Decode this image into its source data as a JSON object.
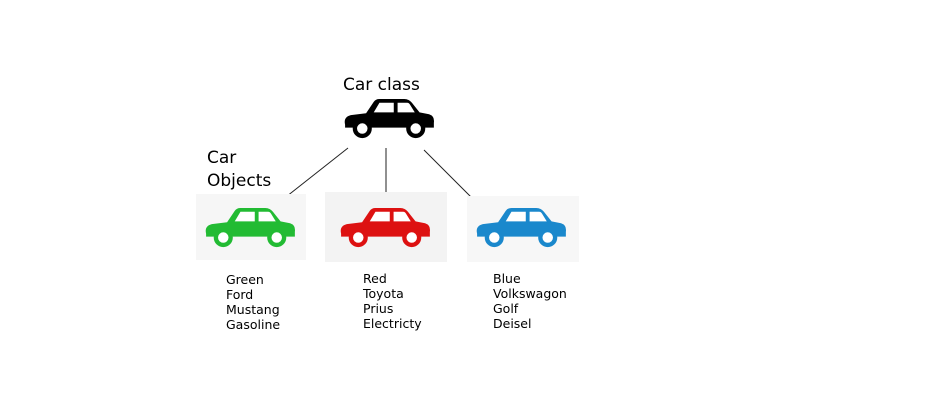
{
  "class_title": "Car class",
  "objects_label": {
    "line1": "Car",
    "line2": "Objects"
  },
  "class_car": {
    "icon": "car-icon",
    "color": "#000000"
  },
  "objects": [
    {
      "color": "#22bb33",
      "icon": "car-icon",
      "attributes": [
        "Green",
        "Ford",
        "Mustang",
        "Gasoline"
      ]
    },
    {
      "color": "#dd1111",
      "icon": "car-icon",
      "attributes": [
        "Red",
        "Toyota",
        "Prius",
        "Electricty"
      ]
    },
    {
      "color": "#1a88cc",
      "icon": "car-icon",
      "attributes": [
        "Blue",
        "Volkswagon",
        "Golf",
        "Deisel"
      ]
    }
  ]
}
